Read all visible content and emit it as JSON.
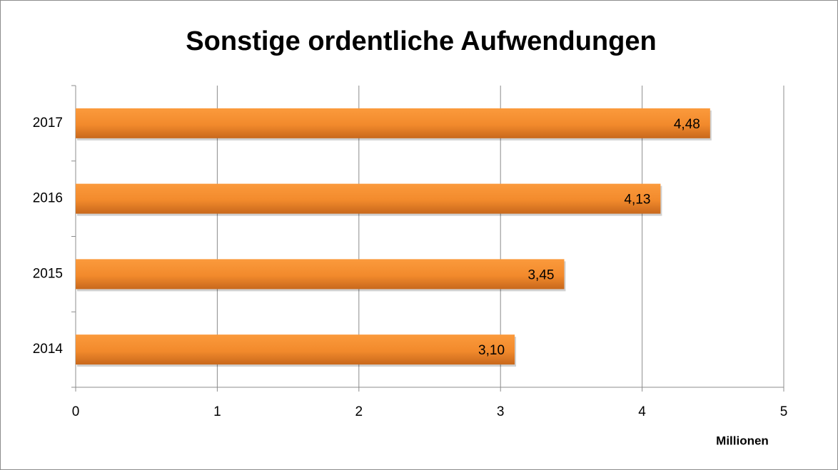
{
  "chart_data": {
    "type": "bar",
    "orientation": "horizontal",
    "title": "Sonstige ordentliche Aufwendungen",
    "x_label": "Millionen",
    "categories": [
      "2014",
      "2015",
      "2016",
      "2017"
    ],
    "values": [
      3.1,
      3.45,
      4.13,
      4.48
    ],
    "value_labels": [
      "3,10",
      "3,45",
      "4,13",
      "4,48"
    ],
    "color": "#f79646",
    "xlim": [
      0,
      5
    ],
    "xticks": [
      0,
      1,
      2,
      3,
      4,
      5
    ],
    "grid": true
  }
}
